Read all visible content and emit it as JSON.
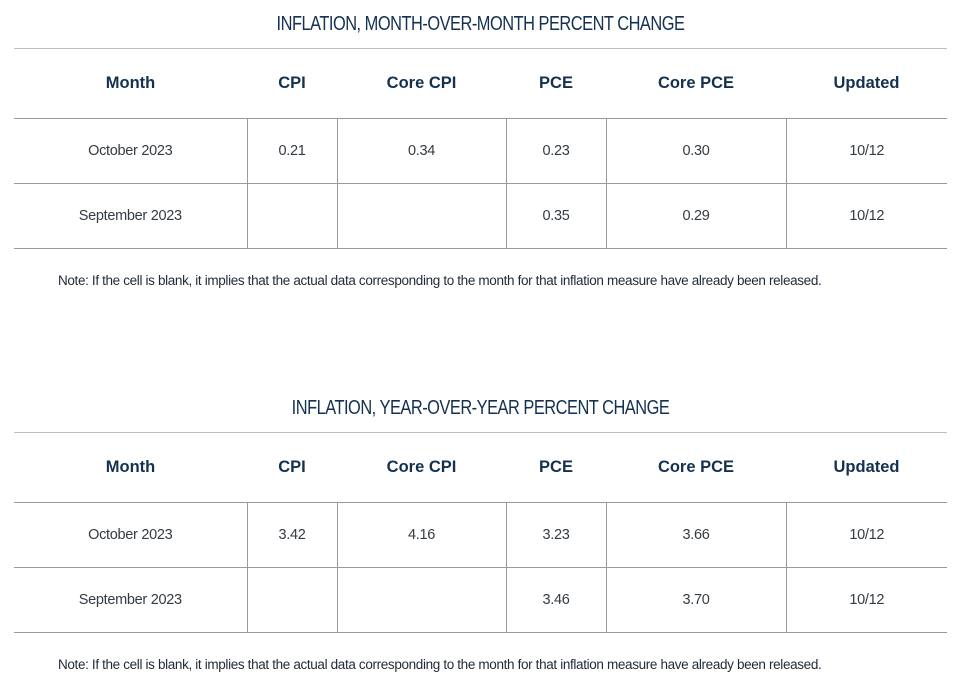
{
  "mom": {
    "title": "INFLATION, MONTH-OVER-MONTH PERCENT CHANGE",
    "headers": [
      "Month",
      "CPI",
      "Core CPI",
      "PCE",
      "Core PCE",
      "Updated"
    ],
    "rows": [
      [
        "October 2023",
        "0.21",
        "0.34",
        "0.23",
        "0.30",
        "10/12"
      ],
      [
        "September 2023",
        "",
        "",
        "0.35",
        "0.29",
        "10/12"
      ]
    ],
    "note": "Note: If the cell is blank, it implies that the actual data corresponding to the month for that inflation measure have already been released."
  },
  "yoy": {
    "title": "INFLATION, YEAR-OVER-YEAR PERCENT CHANGE",
    "headers": [
      "Month",
      "CPI",
      "Core CPI",
      "PCE",
      "Core PCE",
      "Updated"
    ],
    "rows": [
      [
        "October 2023",
        "3.42",
        "4.16",
        "3.23",
        "3.66",
        "10/12"
      ],
      [
        "September 2023",
        "",
        "",
        "3.46",
        "3.70",
        "10/12"
      ]
    ],
    "note": "Note: If the cell is blank, it implies that the actual data corresponding to the month for that inflation measure have already been released."
  }
}
